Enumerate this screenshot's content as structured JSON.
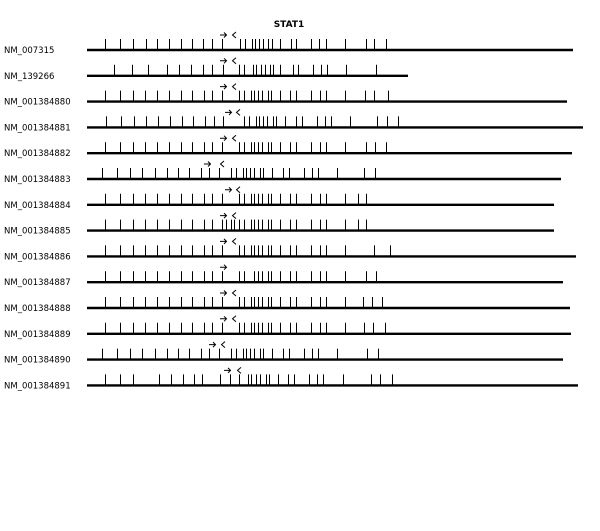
{
  "title": "STAT1",
  "colors": {
    "background": "#ffffff",
    "foreground": "#000000"
  },
  "transcripts": [
    {
      "accession": "NM_007315",
      "end": 573,
      "ticks": [
        105,
        120,
        133,
        146,
        157,
        169,
        181,
        192,
        203,
        212,
        222,
        240,
        245,
        252,
        255,
        259,
        263,
        268,
        272,
        280,
        291,
        296,
        311,
        319,
        326,
        345,
        366,
        374,
        386
      ],
      "fwd": 223,
      "rev": 234
    },
    {
      "accession": "NM_139266",
      "end": 408,
      "ticks": [
        114,
        132,
        148,
        167,
        179,
        191,
        203,
        212,
        223,
        239,
        244,
        253,
        256,
        261,
        265,
        270,
        273,
        280,
        293,
        298,
        313,
        321,
        327,
        346,
        376
      ],
      "fwd": 223,
      "rev": 234
    },
    {
      "accession": "NM_001384880",
      "end": 567,
      "ticks": [
        105,
        120,
        133,
        145,
        157,
        169,
        181,
        192,
        204,
        212,
        222,
        239,
        244,
        251,
        254,
        258,
        262,
        268,
        271,
        280,
        290,
        296,
        311,
        320,
        326,
        345,
        365,
        374,
        388
      ],
      "fwd": 223,
      "rev": 234
    },
    {
      "accession": "NM_001384881",
      "end": 583,
      "ticks": [
        106,
        121,
        134,
        146,
        158,
        170,
        182,
        193,
        205,
        214,
        223,
        244,
        249,
        256,
        259,
        263,
        267,
        273,
        276,
        285,
        296,
        302,
        317,
        325,
        331,
        350,
        377,
        387,
        398
      ],
      "fwd": 228,
      "rev": 238
    },
    {
      "accession": "NM_001384882",
      "end": 572,
      "ticks": [
        105,
        120,
        133,
        145,
        157,
        169,
        181,
        192,
        204,
        212,
        222,
        239,
        244,
        251,
        254,
        258,
        262,
        268,
        271,
        280,
        290,
        296,
        311,
        320,
        326,
        345,
        366,
        375,
        386
      ],
      "fwd": 223,
      "rev": 234
    },
    {
      "accession": "NM_001384883",
      "end": 561,
      "ticks": [
        102,
        117,
        130,
        142,
        155,
        167,
        178,
        189,
        201,
        209,
        219,
        231,
        236,
        243,
        246,
        250,
        254,
        260,
        263,
        272,
        283,
        289,
        304,
        312,
        318,
        337,
        364,
        375
      ],
      "fwd": 207,
      "rev": 222
    },
    {
      "accession": "NM_001384884",
      "end": 554,
      "ticks": [
        105,
        120,
        133,
        145,
        157,
        169,
        181,
        192,
        204,
        212,
        222,
        239,
        244,
        251,
        254,
        258,
        262,
        268,
        271,
        280,
        290,
        296,
        311,
        320,
        326,
        345,
        358,
        366
      ],
      "fwd": 228,
      "rev": 238
    },
    {
      "accession": "NM_001384885",
      "end": 554,
      "ticks": [
        105,
        120,
        133,
        145,
        157,
        169,
        181,
        192,
        204,
        212,
        222,
        226,
        231,
        234,
        239,
        244,
        251,
        254,
        258,
        262,
        268,
        271,
        280,
        290,
        296,
        311,
        320,
        326,
        345,
        358,
        366
      ],
      "fwd": 223,
      "rev": 234
    },
    {
      "accession": "NM_001384886",
      "end": 576,
      "ticks": [
        105,
        120,
        133,
        145,
        157,
        169,
        181,
        192,
        204,
        212,
        222,
        239,
        244,
        251,
        254,
        258,
        262,
        268,
        271,
        280,
        290,
        296,
        311,
        320,
        326,
        345,
        374,
        390
      ],
      "fwd": 223,
      "rev": 234
    },
    {
      "accession": "NM_001384887",
      "end": 563,
      "ticks": [
        105,
        120,
        133,
        145,
        157,
        169,
        181,
        192,
        204,
        212,
        222,
        239,
        244,
        254,
        258,
        262,
        268,
        271,
        280,
        290,
        296,
        311,
        320,
        326,
        345,
        366,
        376
      ],
      "fwd": 223,
      "rev": null
    },
    {
      "accession": "NM_001384888",
      "end": 570,
      "ticks": [
        105,
        120,
        133,
        145,
        157,
        169,
        181,
        192,
        204,
        212,
        222,
        239,
        244,
        251,
        254,
        258,
        262,
        268,
        271,
        280,
        290,
        296,
        311,
        320,
        326,
        345,
        363,
        372,
        382
      ],
      "fwd": 223,
      "rev": 234
    },
    {
      "accession": "NM_001384889",
      "end": 571,
      "ticks": [
        105,
        120,
        133,
        145,
        157,
        169,
        181,
        192,
        204,
        212,
        222,
        239,
        244,
        251,
        254,
        258,
        262,
        268,
        271,
        280,
        290,
        296,
        311,
        320,
        326,
        345,
        364,
        373,
        385
      ],
      "fwd": 223,
      "rev": 234
    },
    {
      "accession": "NM_001384890",
      "end": 563,
      "ticks": [
        102,
        117,
        130,
        142,
        155,
        167,
        178,
        189,
        201,
        209,
        219,
        231,
        236,
        243,
        246,
        250,
        254,
        260,
        263,
        272,
        283,
        289,
        304,
        312,
        318,
        337,
        367,
        378
      ],
      "fwd": 212,
      "rev": 223
    },
    {
      "accession": "NM_001384891",
      "end": 578,
      "ticks": [
        105,
        120,
        133,
        159,
        171,
        183,
        194,
        202,
        220,
        230,
        239,
        248,
        251,
        256,
        260,
        266,
        269,
        278,
        288,
        294,
        309,
        317,
        323,
        343,
        371,
        380,
        392
      ],
      "fwd": 227,
      "rev": 239
    }
  ]
}
